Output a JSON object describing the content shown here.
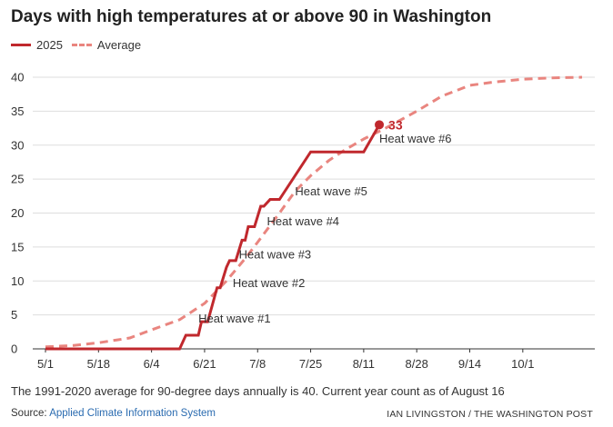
{
  "header": {
    "title": "Days with high temperatures at or above 90 in Washington"
  },
  "legend": {
    "items": [
      {
        "label": "2025",
        "color": "#c0282d",
        "style": "solid"
      },
      {
        "label": "Average",
        "color": "#e9857f",
        "style": "dashed"
      }
    ]
  },
  "chart_data": {
    "type": "line",
    "title": "Days with high temperatures at or above 90 in Washington",
    "xlabel": "",
    "ylabel": "",
    "x_tick_labels": [
      "5/1",
      "5/18",
      "6/4",
      "6/21",
      "7/8",
      "7/25",
      "8/11",
      "8/28",
      "9/14",
      "10/1"
    ],
    "y_ticks": [
      0,
      5,
      10,
      15,
      20,
      25,
      30,
      35,
      40
    ],
    "ylim": [
      0,
      40
    ],
    "xlim": [
      "5/1",
      "10/20"
    ],
    "grid": true,
    "legend_position": "top-left",
    "series": [
      {
        "name": "2025",
        "color": "#c0282d",
        "style": "solid",
        "points": [
          [
            "5/1",
            0
          ],
          [
            "6/13",
            0
          ],
          [
            "6/15",
            2
          ],
          [
            "6/19",
            2
          ],
          [
            "6/20",
            4
          ],
          [
            "6/22",
            4
          ],
          [
            "6/25",
            9
          ],
          [
            "6/26",
            9
          ],
          [
            "6/28",
            12
          ],
          [
            "6/29",
            13
          ],
          [
            "7/1",
            13
          ],
          [
            "7/3",
            16
          ],
          [
            "7/4",
            16
          ],
          [
            "7/5",
            18
          ],
          [
            "7/7",
            18
          ],
          [
            "7/9",
            21
          ],
          [
            "7/10",
            21
          ],
          [
            "7/12",
            22
          ],
          [
            "7/15",
            22
          ],
          [
            "7/25",
            29
          ],
          [
            "8/11",
            29
          ],
          [
            "8/16",
            33
          ]
        ],
        "end_label": "33"
      },
      {
        "name": "Average",
        "color": "#e9857f",
        "style": "dashed",
        "points": [
          [
            "5/1",
            0.3
          ],
          [
            "5/10",
            0.5
          ],
          [
            "5/18",
            0.9
          ],
          [
            "5/28",
            1.6
          ],
          [
            "6/4",
            2.8
          ],
          [
            "6/13",
            4.3
          ],
          [
            "6/21",
            6.7
          ],
          [
            "6/28",
            10
          ],
          [
            "7/4",
            13.3
          ],
          [
            "7/8",
            15.7
          ],
          [
            "7/15",
            20
          ],
          [
            "7/20",
            23.2
          ],
          [
            "7/25",
            25.5
          ],
          [
            "7/31",
            27.8
          ],
          [
            "8/5",
            29.3
          ],
          [
            "8/11",
            30.9
          ],
          [
            "8/18",
            32.5
          ],
          [
            "8/28",
            35
          ],
          [
            "9/5",
            37.2
          ],
          [
            "9/14",
            38.8
          ],
          [
            "9/22",
            39.3
          ],
          [
            "10/1",
            39.7
          ],
          [
            "10/10",
            39.9
          ],
          [
            "10/20",
            40
          ]
        ]
      }
    ],
    "annotations": [
      {
        "text": "Heat wave #1",
        "x": "6/19",
        "y": 3.9
      },
      {
        "text": "Heat wave #2",
        "x": "6/30",
        "y": 9.1
      },
      {
        "text": "Heat wave #3",
        "x": "7/2",
        "y": 13.3
      },
      {
        "text": "Heat wave #4",
        "x": "7/11",
        "y": 18.2
      },
      {
        "text": "Heat wave #5",
        "x": "7/20",
        "y": 22.6
      },
      {
        "text": "Heat wave #6",
        "x": "8/16",
        "y": 30.4
      }
    ]
  },
  "footer": {
    "note": "The 1991-2020 average for 90-degree days annually is 40. Current year count as of August 16",
    "source_label": "Source: ",
    "source_link": "Applied Climate Information System",
    "credit": "IAN LIVINGSTON / THE WASHINGTON POST"
  }
}
